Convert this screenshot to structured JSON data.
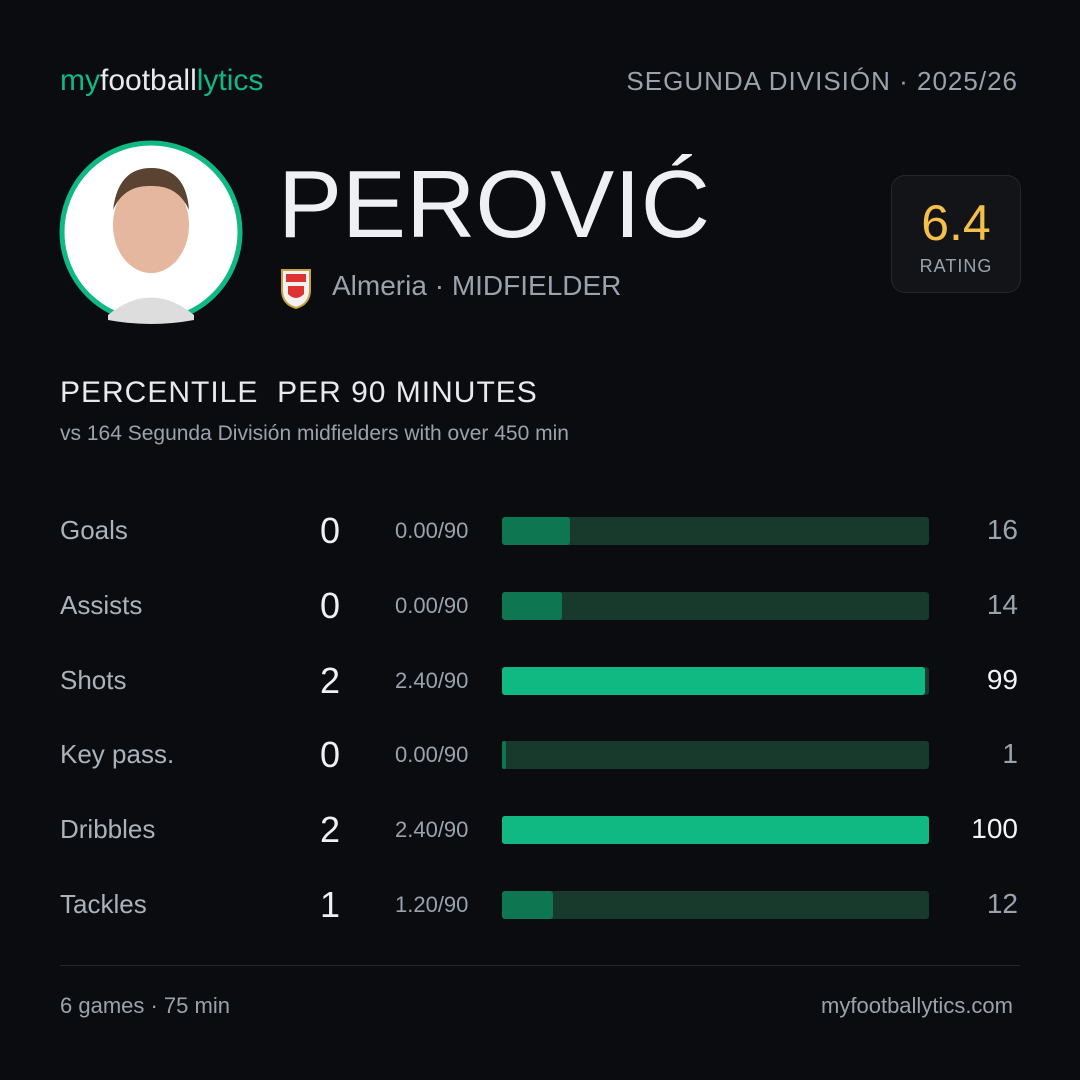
{
  "header": {
    "logo": [
      "my",
      "football",
      "lytics"
    ],
    "league": "SEGUNDA DIVISIÓN · 2025/26"
  },
  "player": {
    "name": "PEROVIĆ",
    "team": "Almeria",
    "position": "MIDFIELDER",
    "rating": 6.4,
    "rating_label": "RATING"
  },
  "section": {
    "title": [
      "PERCENTILE",
      "PER 90 MINUTES"
    ],
    "subtitle": [
      "vs 164 Segunda División midfielders",
      "with over 450 min"
    ]
  },
  "stats": [
    {
      "label": "Goals",
      "total": 0,
      "per90": "0.00/90",
      "percentile": 16,
      "color": "#0e7752"
    },
    {
      "label": "Assists",
      "total": 0,
      "per90": "0.00/90",
      "percentile": 14,
      "color": "#0e7752"
    },
    {
      "label": "Shots",
      "total": 2,
      "per90": "2.40/90",
      "percentile": 99,
      "color": "#10b981"
    },
    {
      "label": "Key pass.",
      "total": 0,
      "per90": "0.00/90",
      "percentile": 1,
      "color": "#0e7752"
    },
    {
      "label": "Dribbles",
      "total": 2,
      "per90": "2.40/90",
      "percentile": 100,
      "color": "#10b981"
    },
    {
      "label": "Tackles",
      "total": 1,
      "per90": "1.20/90",
      "percentile": 12,
      "color": "#0e7752"
    }
  ],
  "footer": {
    "summary": "6 games · 75 min",
    "site": "myfootballytics.com"
  }
}
